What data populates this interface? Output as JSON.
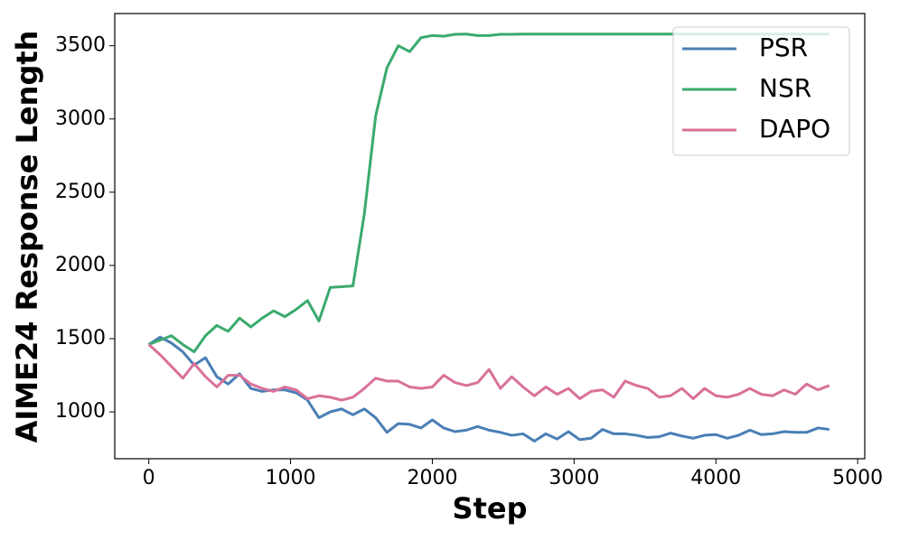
{
  "chart_data": {
    "type": "line",
    "x_label": "Step",
    "y_label": "AIME24 Response Length",
    "x": [
      0,
      80,
      160,
      240,
      320,
      400,
      480,
      560,
      640,
      720,
      800,
      880,
      960,
      1040,
      1120,
      1200,
      1280,
      1360,
      1440,
      1520,
      1600,
      1680,
      1760,
      1840,
      1920,
      2000,
      2080,
      2160,
      2240,
      2320,
      2400,
      2480,
      2560,
      2640,
      2720,
      2800,
      2880,
      2960,
      3040,
      3120,
      3200,
      3280,
      3360,
      3440,
      3520,
      3600,
      3680,
      3760,
      3840,
      3920,
      4000,
      4080,
      4160,
      4240,
      4320,
      4400,
      4480,
      4560,
      4640,
      4720,
      4800
    ],
    "series": [
      {
        "name": "PSR",
        "color": "#4a7fb5",
        "values": [
          1460,
          1510,
          1470,
          1410,
          1320,
          1370,
          1240,
          1190,
          1260,
          1160,
          1140,
          1150,
          1150,
          1130,
          1080,
          960,
          1000,
          1020,
          980,
          1020,
          960,
          860,
          920,
          915,
          890,
          945,
          890,
          865,
          875,
          900,
          875,
          860,
          840,
          850,
          800,
          850,
          815,
          865,
          810,
          820,
          880,
          850,
          850,
          840,
          825,
          830,
          855,
          835,
          820,
          840,
          845,
          820,
          840,
          875,
          845,
          850,
          865,
          860,
          860,
          890,
          880
        ]
      },
      {
        "name": "NSR",
        "color": "#3aaa6e",
        "values": [
          1460,
          1490,
          1520,
          1460,
          1410,
          1520,
          1590,
          1550,
          1640,
          1580,
          1640,
          1690,
          1650,
          1700,
          1760,
          1620,
          1850,
          1855,
          1860,
          2350,
          3020,
          3350,
          3500,
          3460,
          3555,
          3570,
          3565,
          3578,
          3580,
          3570,
          3570,
          3578,
          3578,
          3580,
          3580,
          3580,
          3580,
          3580,
          3580,
          3580,
          3580,
          3580,
          3580,
          3580,
          3580,
          3580,
          3580,
          3580,
          3580,
          3580,
          3580,
          3580,
          3580,
          3580,
          3580,
          3580,
          3580,
          3580,
          3580,
          3580,
          3580
        ]
      },
      {
        "name": "DAPO",
        "color": "#d9719a",
        "values": [
          1460,
          1390,
          1310,
          1230,
          1330,
          1240,
          1170,
          1250,
          1250,
          1190,
          1160,
          1140,
          1170,
          1150,
          1090,
          1110,
          1100,
          1080,
          1100,
          1160,
          1230,
          1210,
          1210,
          1170,
          1160,
          1170,
          1250,
          1200,
          1180,
          1200,
          1290,
          1160,
          1240,
          1170,
          1110,
          1170,
          1120,
          1160,
          1090,
          1140,
          1150,
          1100,
          1210,
          1180,
          1160,
          1100,
          1110,
          1160,
          1090,
          1160,
          1110,
          1100,
          1120,
          1160,
          1120,
          1110,
          1150,
          1120,
          1190,
          1150,
          1180
        ]
      }
    ],
    "xlim": [
      -240,
      5050
    ],
    "ylim": [
      680,
      3720
    ],
    "xticks": [
      0,
      1000,
      2000,
      3000,
      4000,
      5000
    ],
    "yticks": [
      1000,
      1500,
      2000,
      2500,
      3000,
      3500
    ],
    "legend": "upper right",
    "grid": false
  }
}
